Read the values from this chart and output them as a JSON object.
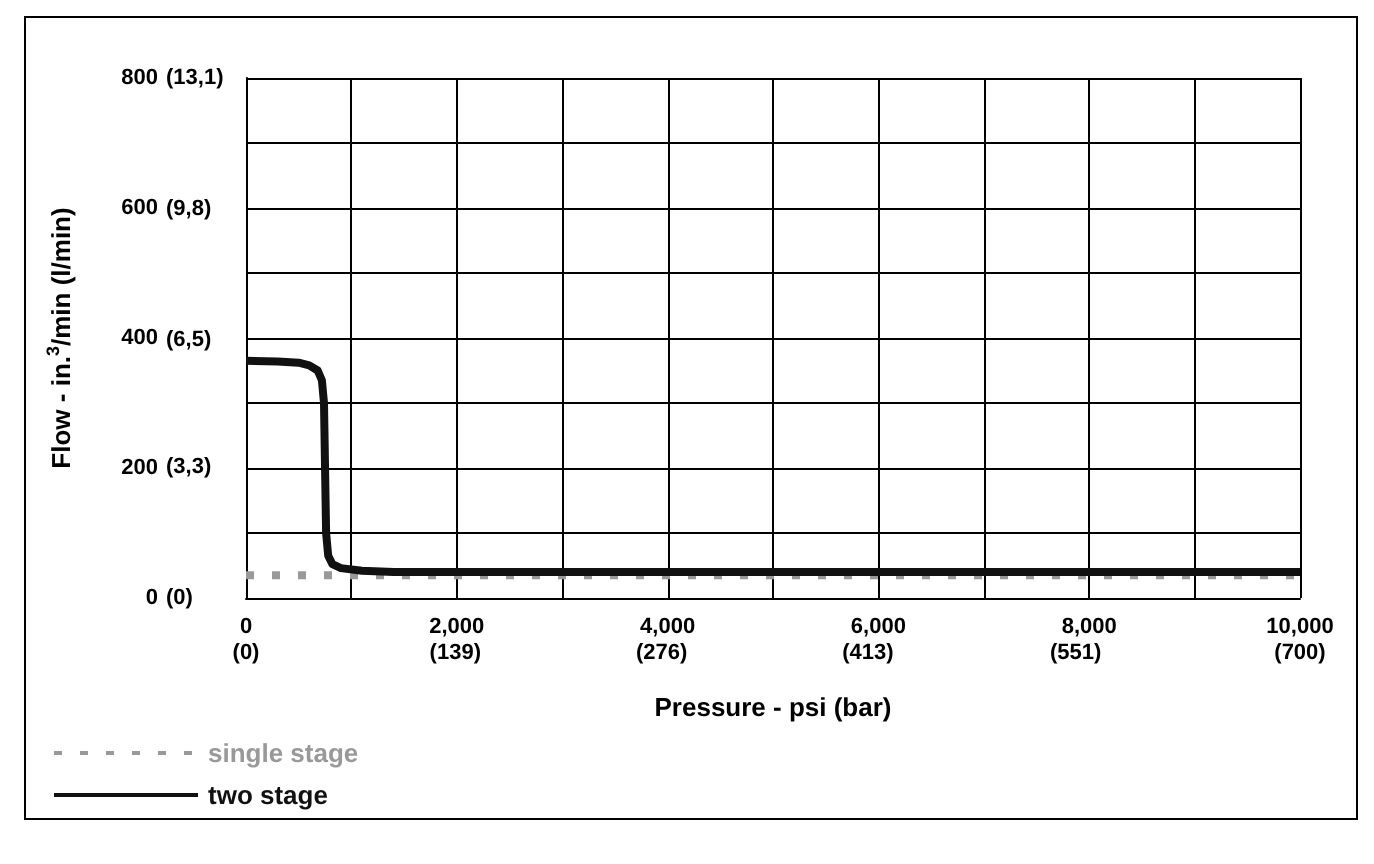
{
  "chart_data": {
    "type": "line",
    "xlabel": "Pressure - psi (bar)",
    "ylabel": "Flow - in.$^{3}$/min (l/min)",
    "xlim": [
      0,
      10000
    ],
    "ylim": [
      0,
      800
    ],
    "xticks": [
      0,
      {
        "value": 1000,
        "label": null
      },
      {
        "value": 2000,
        "label": "2,000"
      },
      {
        "value": 3000,
        "label": null
      },
      {
        "value": 4000,
        "label": "4,000"
      },
      {
        "value": 5000,
        "label": null
      },
      {
        "value": 6000,
        "label": "6,000"
      },
      {
        "value": 7000,
        "label": null
      },
      {
        "value": 8000,
        "label": "8,000"
      },
      {
        "value": 9000,
        "label": null
      },
      {
        "value": 10000,
        "label": "10,000"
      }
    ],
    "x2lim": [
      0,
      700
    ],
    "x2ticks": [
      {
        "value": 0,
        "label": "(0)"
      },
      {
        "value": 139,
        "label": "(139)"
      },
      {
        "value": 276,
        "label": "(276)"
      },
      {
        "value": 413,
        "label": "(413)"
      },
      {
        "value": 551,
        "label": "(551)"
      },
      {
        "value": 700,
        "label": "(700)"
      }
    ],
    "yticks": [
      0,
      {
        "value": 100,
        "label": null
      },
      200,
      {
        "value": 300,
        "label": null
      },
      400,
      {
        "value": 500,
        "label": null
      },
      600,
      {
        "value": 700,
        "label": null
      },
      800
    ],
    "y2lim": [
      0,
      13.1
    ],
    "y2ticks": [
      {
        "value": 0,
        "label": "(0)"
      },
      {
        "value": 3.3,
        "label": "(3,3)"
      },
      {
        "value": 6.5,
        "label": "(6,5)"
      },
      {
        "value": 9.8,
        "label": "(9,8)"
      },
      {
        "value": 13.1,
        "label": "(13,1)"
      }
    ],
    "grid": true,
    "legend": "bottom left",
    "marker": "none",
    "series": [
      {
        "name": "single stage",
        "color": "#999999",
        "line_style": "dotted",
        "x": [
          0,
          10000
        ],
        "values": [
          35,
          35
        ]
      },
      {
        "name": "two stage",
        "color": "#111111",
        "line_style": "solid",
        "x": [
          0,
          300,
          500,
          600,
          680,
          720,
          740,
          750,
          760,
          780,
          820,
          900,
          1100,
          1400,
          2000,
          10000
        ],
        "values": [
          365,
          364,
          362,
          358,
          350,
          335,
          300,
          200,
          100,
          65,
          52,
          46,
          42,
          40,
          40,
          40
        ]
      }
    ]
  }
}
